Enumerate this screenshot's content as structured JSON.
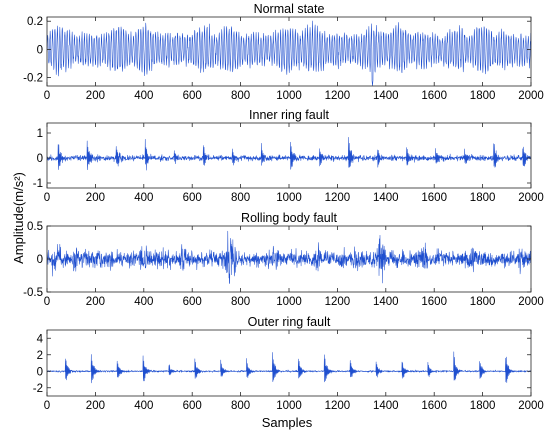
{
  "chart_data": [
    {
      "type": "line",
      "title": "Normal state",
      "xlim": [
        0,
        2000
      ],
      "ylim": [
        -0.26,
        0.23
      ],
      "xticks": [
        "0",
        "200",
        "400",
        "600",
        "800",
        "1000",
        "1200",
        "1400",
        "1600",
        "1800",
        "2000"
      ],
      "yticks": [
        {
          "value": 0.2,
          "label": "0.2"
        },
        {
          "value": 0,
          "label": "0"
        },
        {
          "value": -0.2,
          "label": "-0.2"
        }
      ],
      "signal": {
        "kind": "sinusoidal",
        "envelope": 0.16,
        "noise": 0.03,
        "min_dip": -0.26,
        "dip_at": 1345
      },
      "color": "#1f4fcf"
    },
    {
      "type": "line",
      "title": "Inner ring fault",
      "xlim": [
        0,
        2000
      ],
      "ylim": [
        -1.2,
        1.4
      ],
      "xticks": [
        "0",
        "200",
        "400",
        "600",
        "800",
        "1000",
        "1200",
        "1400",
        "1600",
        "1800",
        "2000"
      ],
      "yticks": [
        {
          "value": 1,
          "label": "1"
        },
        {
          "value": 0,
          "label": "0"
        },
        {
          "value": -1,
          "label": "-1"
        }
      ],
      "signal": {
        "kind": "impulsive",
        "baseline": 0.15,
        "period": 120,
        "peak": 0.9,
        "start": 45
      },
      "color": "#1f4fcf"
    },
    {
      "type": "line",
      "title": "Rolling body fault",
      "xlim": [
        0,
        2000
      ],
      "ylim": [
        -0.5,
        0.5
      ],
      "xticks": [
        "0",
        "200",
        "400",
        "600",
        "800",
        "1000",
        "1200",
        "1400",
        "1600",
        "1800",
        "2000"
      ],
      "yticks": [
        {
          "value": 0.5,
          "label": "0.5"
        },
        {
          "value": 0,
          "label": "0"
        },
        {
          "value": -0.5,
          "label": "-0.5"
        }
      ],
      "signal": {
        "kind": "noisy",
        "baseline": 0.13,
        "bursts": [
          [
            40,
            0.33
          ],
          [
            120,
            0.25
          ],
          [
            260,
            0.22
          ],
          [
            400,
            0.25
          ],
          [
            560,
            0.24
          ],
          [
            760,
            0.5
          ],
          [
            940,
            0.28
          ],
          [
            1120,
            0.22
          ],
          [
            1280,
            0.24
          ],
          [
            1380,
            0.42
          ],
          [
            1560,
            0.25
          ],
          [
            1760,
            0.28
          ],
          [
            1960,
            0.25
          ]
        ]
      },
      "color": "#1f4fcf"
    },
    {
      "type": "line",
      "title": "Outer ring fault",
      "xlim": [
        0,
        2000
      ],
      "ylim": [
        -3,
        5
      ],
      "xticks": [
        "0",
        "200",
        "400",
        "600",
        "800",
        "1000",
        "1200",
        "1400",
        "1600",
        "1800",
        "2000"
      ],
      "yticks": [
        {
          "value": 4,
          "label": "4"
        },
        {
          "value": 2,
          "label": "2"
        },
        {
          "value": 0,
          "label": "0"
        },
        {
          "value": -2,
          "label": "-2"
        }
      ],
      "signal": {
        "kind": "impulsive",
        "baseline": 0.15,
        "period": 107,
        "peak": 2.7,
        "start": 75
      },
      "color": "#1f4fcf"
    }
  ],
  "xlabel": "Samples",
  "ylabel": "Amplitude(m/s²)",
  "trace_color": "#1f4fcf"
}
